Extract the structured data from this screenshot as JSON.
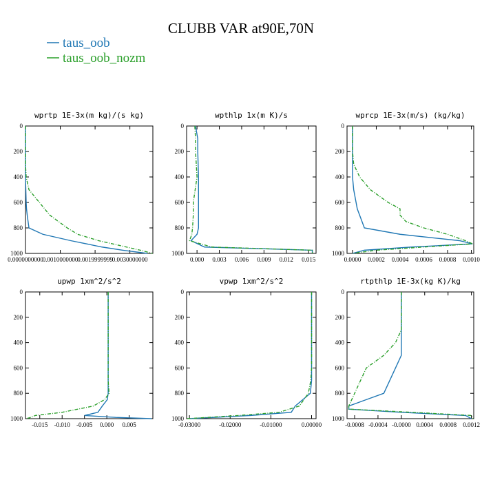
{
  "title": "CLUBB VAR at90E,70N",
  "chart_data": [
    {
      "type": "profile",
      "title": "wprtp  1E-3x(m kg)/(s kg)",
      "ylim": [
        0,
        1000
      ],
      "y_inverted": true,
      "yticks": [
        0,
        200,
        400,
        600,
        800,
        1000
      ],
      "xlim": [
        0,
        0.00366
      ],
      "xticks": [
        {
          "value": 0,
          "label": "0.0000000000"
        },
        {
          "value": 0.001,
          "label": "0.0010000000"
        },
        {
          "value": 0.002,
          "label": "0.0019999999"
        },
        {
          "value": 0.003,
          "label": "0.0030000000"
        }
      ],
      "y": [
        0,
        100,
        200,
        300,
        400,
        500,
        600,
        650,
        700,
        800,
        850,
        900,
        950,
        975,
        1000
      ],
      "series": [
        {
          "name": "taus_oob",
          "color": "#1f77b4",
          "linestyle": "solid",
          "values": [
            0,
            0,
            0,
            0,
            0,
            1e-05,
            2e-05,
            3e-05,
            5e-05,
            0.0001,
            0.0005,
            0.0013,
            0.0022,
            0.0028,
            0.0035
          ]
        },
        {
          "name": "taus_oob_nozm",
          "color": "#2ca02c",
          "linestyle": "dashed",
          "values": [
            0,
            0,
            0,
            0,
            2e-05,
            0.0001,
            0.0004,
            0.00055,
            0.0007,
            0.0012,
            0.0015,
            0.0021,
            0.0029,
            0.0033,
            0.00365
          ]
        }
      ]
    },
    {
      "type": "profile",
      "title": "wpthlp  1x(m K)/s",
      "ylim": [
        0,
        1000
      ],
      "y_inverted": true,
      "yticks": [
        0,
        200,
        400,
        600,
        800,
        1000
      ],
      "xlim": [
        -0.0014,
        0.016
      ],
      "xticks": [
        {
          "value": 0,
          "label": "0.000"
        },
        {
          "value": 0.003,
          "label": "0.003"
        },
        {
          "value": 0.006,
          "label": "0.006"
        },
        {
          "value": 0.009,
          "label": "0.009"
        },
        {
          "value": 0.012,
          "label": "0.012"
        },
        {
          "value": 0.015,
          "label": "0.015"
        }
      ],
      "y": [
        0,
        100,
        200,
        400,
        600,
        700,
        800,
        850,
        900,
        950,
        975,
        1000
      ],
      "series": [
        {
          "name": "taus_oob",
          "color": "#1f77b4",
          "linestyle": "solid",
          "values": [
            -0.0002,
            0.0001,
            0.0001,
            0.0002,
            0.0002,
            0.0002,
            0.0002,
            0,
            -0.0008,
            0.001,
            0.0155,
            0.0155
          ]
        },
        {
          "name": "taus_oob_nozm",
          "color": "#2ca02c",
          "linestyle": "dashed",
          "values": [
            -0.0003,
            -0.0002,
            -0.0002,
            0,
            -0.0005,
            -0.0005,
            -0.0006,
            -0.0007,
            -0.001,
            0.002,
            0.0155,
            0.0155
          ]
        }
      ]
    },
    {
      "type": "profile",
      "title": "wprcp  1E-3x(m/s) (kg/kg)",
      "ylim": [
        0,
        1000
      ],
      "y_inverted": true,
      "yticks": [
        0,
        200,
        400,
        600,
        800,
        1000
      ],
      "xlim": [
        -4.6e-05,
        0.00102
      ],
      "xticks": [
        {
          "value": 0,
          "label": "0.0000"
        },
        {
          "value": 0.0002,
          "label": "0.0002"
        },
        {
          "value": 0.0004,
          "label": "0.0004"
        },
        {
          "value": 0.0006,
          "label": "0.0006"
        },
        {
          "value": 0.0008,
          "label": "0.0008"
        },
        {
          "value": 0.001,
          "label": "0.0010"
        }
      ],
      "y": [
        0,
        100,
        200,
        300,
        400,
        500,
        600,
        650,
        700,
        750,
        800,
        850,
        900,
        925,
        950,
        975,
        1000
      ],
      "series": [
        {
          "name": "taus_oob",
          "color": "#1f77b4",
          "linestyle": "solid",
          "values": [
            0,
            0,
            0,
            0,
            0,
            1e-05,
            3e-05,
            4e-05,
            6e-05,
            8e-05,
            0.0001,
            0.0004,
            0.0009,
            0.00101,
            0.0005,
            0.0001,
            0
          ]
        },
        {
          "name": "taus_oob_nozm",
          "color": "#2ca02c",
          "linestyle": "dashed",
          "values": [
            0,
            0,
            0,
            1e-05,
            6e-05,
            0.00015,
            0.0003,
            0.0004,
            0.0004,
            0.00045,
            0.0006,
            0.0008,
            0.00095,
            0.00101,
            0.0006,
            0.0002,
            0
          ]
        }
      ]
    },
    {
      "type": "profile",
      "title": "upwp  1xm^2/s^2",
      "ylim": [
        0,
        1000
      ],
      "y_inverted": true,
      "yticks": [
        0,
        200,
        400,
        600,
        800,
        1000
      ],
      "xlim": [
        -0.0182,
        0.0103
      ],
      "xticks": [
        {
          "value": -0.015,
          "label": "-0.015"
        },
        {
          "value": -0.01,
          "label": "-0.010"
        },
        {
          "value": -0.005,
          "label": "-0.005"
        },
        {
          "value": 0,
          "label": "0.000"
        },
        {
          "value": 0.005,
          "label": "0.005"
        }
      ],
      "y": [
        0,
        100,
        200,
        400,
        600,
        700,
        800,
        850,
        900,
        950,
        975,
        990,
        1000
      ],
      "series": [
        {
          "name": "taus_oob",
          "color": "#1f77b4",
          "linestyle": "solid",
          "values": [
            0.0003,
            0.0003,
            0.0003,
            0.0003,
            0.0003,
            0.0003,
            0.0003,
            0.0001,
            -0.001,
            -0.002,
            -0.005,
            0.002,
            0.01
          ]
        },
        {
          "name": "taus_oob_nozm",
          "color": "#2ca02c",
          "linestyle": "dashed",
          "values": [
            0.0003,
            0.0003,
            0.0003,
            0.0003,
            0.0003,
            0.0003,
            0.0005,
            -0.0005,
            -0.003,
            -0.01,
            -0.016,
            -0.017,
            -0.018
          ]
        }
      ]
    },
    {
      "type": "profile",
      "title": "vpwp  1xm^2/s^2",
      "ylim": [
        0,
        1000
      ],
      "y_inverted": true,
      "yticks": [
        0,
        200,
        400,
        600,
        800,
        1000
      ],
      "xlim": [
        -0.0307,
        0.0011
      ],
      "xticks": [
        {
          "value": -0.03,
          "label": "-0.03000"
        },
        {
          "value": -0.02,
          "label": "-0.02000"
        },
        {
          "value": -0.01,
          "label": "-0.01000"
        },
        {
          "value": 0,
          "label": "0.00000"
        }
      ],
      "y": [
        0,
        200,
        400,
        600,
        700,
        800,
        900,
        950,
        975,
        1000
      ],
      "series": [
        {
          "name": "taus_oob",
          "color": "#1f77b4",
          "linestyle": "solid",
          "values": [
            0,
            0,
            0,
            0,
            0,
            -0.0003,
            -0.004,
            -0.005,
            -0.015,
            -0.03
          ]
        },
        {
          "name": "taus_oob_nozm",
          "color": "#2ca02c",
          "linestyle": "dashed",
          "values": [
            0,
            0,
            0,
            0,
            -0.0002,
            -0.0008,
            -0.003,
            -0.008,
            -0.018,
            -0.0305
          ]
        }
      ]
    },
    {
      "type": "profile",
      "title": "rtpthlp  1E-3x(kg K)/kg",
      "ylim": [
        0,
        1000
      ],
      "y_inverted": true,
      "yticks": [
        0,
        200,
        400,
        600,
        800,
        1000
      ],
      "xlim": [
        -0.00093,
        0.00124
      ],
      "xticks": [
        {
          "value": -0.0008,
          "label": "-0.0008"
        },
        {
          "value": -0.0004,
          "label": "-0.0004"
        },
        {
          "value": 0,
          "label": "-0.0000"
        },
        {
          "value": 0.0004,
          "label": "0.0004"
        },
        {
          "value": 0.0008,
          "label": "0.0008"
        },
        {
          "value": 0.0012,
          "label": "0.0012"
        }
      ],
      "y": [
        0,
        100,
        200,
        300,
        400,
        500,
        600,
        700,
        800,
        850,
        900,
        925,
        950,
        975,
        1000
      ],
      "series": [
        {
          "name": "taus_oob",
          "color": "#1f77b4",
          "linestyle": "solid",
          "values": [
            0,
            0,
            0,
            0,
            0,
            0,
            -0.0001,
            -0.0002,
            -0.0003,
            -0.0006,
            -0.0009,
            -0.0009,
            0,
            0.0011,
            0.0012
          ]
        },
        {
          "name": "taus_oob_nozm",
          "color": "#2ca02c",
          "linestyle": "dashed",
          "values": [
            0,
            0,
            0,
            0,
            -0.0001,
            -0.0003,
            -0.0006,
            -0.0007,
            -0.0008,
            -0.00085,
            -0.0009,
            -0.0009,
            0.0002,
            0.0012,
            0.00123
          ]
        }
      ]
    }
  ]
}
